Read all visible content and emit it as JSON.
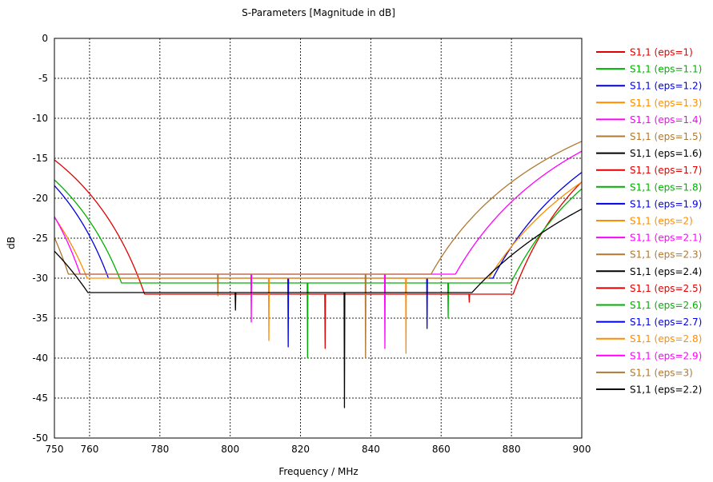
{
  "chart_data": {
    "type": "line",
    "title": "S-Parameters [Magnitude in dB]",
    "xlabel": "Frequency / MHz",
    "ylabel": "dB",
    "xlim": [
      750,
      900
    ],
    "ylim": [
      -50,
      0
    ],
    "xticks": [
      750,
      760,
      780,
      800,
      820,
      840,
      860,
      880,
      900
    ],
    "yticks": [
      0,
      -5,
      -10,
      -15,
      -20,
      -25,
      -30,
      -35,
      -40,
      -45,
      -50
    ],
    "grid": true,
    "legend_position": "right",
    "series": [
      {
        "name": "S1,1 (eps=1)",
        "color": "#e00000",
        "dips": [
          {
            "f": 787.5,
            "depth": -32.0
          },
          {
            "f": 827.0,
            "depth": -38.8
          },
          {
            "f": 868.0,
            "depth": -33.0
          }
        ]
      },
      {
        "name": "S1,1 (eps=1.1)",
        "color": "#00b000",
        "dips": [
          {
            "f": 782.5,
            "depth": -30.6
          },
          {
            "f": 822.0,
            "depth": -40.0
          },
          {
            "f": 862.0,
            "depth": -35.0
          }
        ]
      },
      {
        "name": "S1,1 (eps=1.2)",
        "color": "#0000e0",
        "dips": [
          {
            "f": 778.0,
            "depth": -30.0
          },
          {
            "f": 816.5,
            "depth": -38.6
          },
          {
            "f": 856.0,
            "depth": -36.3
          }
        ]
      },
      {
        "name": "S1,1 (eps=1.3)",
        "color": "#ff8c00",
        "dips": [
          {
            "f": 773.5,
            "depth": -30.0
          },
          {
            "f": 811.0,
            "depth": -37.8
          },
          {
            "f": 850.0,
            "depth": -39.4
          }
        ]
      },
      {
        "name": "S1,1 (eps=1.4)",
        "color": "#ff00ff",
        "dips": [
          {
            "f": 769.0,
            "depth": -29.5
          },
          {
            "f": 806.0,
            "depth": -35.5
          },
          {
            "f": 844.0,
            "depth": -38.8
          }
        ]
      },
      {
        "name": "S1,1 (eps=1.5)",
        "color": "#b07830",
        "dips": [
          {
            "f": 765.0,
            "depth": -29.5
          },
          {
            "f": 796.5,
            "depth": -32.2
          },
          {
            "f": 838.5,
            "depth": -40.0
          }
        ]
      },
      {
        "name": "S1,1 (eps=1.6)",
        "color": "#000000",
        "dips": [
          {
            "f": 792.0,
            "depth": -31.8
          },
          {
            "f": 801.5,
            "depth": -34.0
          },
          {
            "f": 832.5,
            "depth": -46.2
          }
        ]
      }
    ],
    "legend": [
      {
        "label": "S1,1 (eps=1)",
        "color": "#e00000"
      },
      {
        "label": "S1,1 (eps=1.1)",
        "color": "#00b000"
      },
      {
        "label": "S1,1 (eps=1.2)",
        "color": "#0000e0"
      },
      {
        "label": "S1,1 (eps=1.3)",
        "color": "#ff8c00"
      },
      {
        "label": "S1,1 (eps=1.4)",
        "color": "#ff00ff"
      },
      {
        "label": "S1,1 (eps=1.5)",
        "color": "#b07830"
      },
      {
        "label": "S1,1 (eps=1.6)",
        "color": "#000000"
      },
      {
        "label": "S1,1 (eps=1.7)",
        "color": "#e00000"
      },
      {
        "label": "S1,1 (eps=1.8)",
        "color": "#00b000"
      },
      {
        "label": "S1,1 (eps=1.9)",
        "color": "#0000e0"
      },
      {
        "label": "S1,1 (eps=2)",
        "color": "#ff8c00"
      },
      {
        "label": "S1,1 (eps=2.1)",
        "color": "#ff00ff"
      },
      {
        "label": "S1,1 (eps=2.3)",
        "color": "#b07830"
      },
      {
        "label": "S1,1 (eps=2.4)",
        "color": "#000000"
      },
      {
        "label": "S1,1 (eps=2.5)",
        "color": "#e00000"
      },
      {
        "label": "S1,1 (eps=2.6)",
        "color": "#00b000"
      },
      {
        "label": "S1,1 (eps=2.7)",
        "color": "#0000e0"
      },
      {
        "label": "S1,1 (eps=2.8)",
        "color": "#ff8c00"
      },
      {
        "label": "S1,1 (eps=2.9)",
        "color": "#ff00ff"
      },
      {
        "label": "S1,1 (eps=3)",
        "color": "#b07830"
      },
      {
        "label": "S1,1 (eps=2.2)",
        "color": "#000000"
      }
    ]
  }
}
